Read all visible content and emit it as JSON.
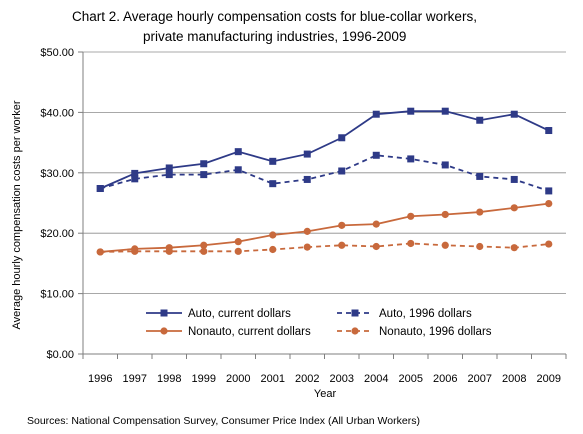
{
  "chart_data": {
    "type": "line",
    "title_lines": [
      "Chart 2.  Average hourly compensation costs for blue-collar workers,",
      "private manufacturing industries, 1996-2009"
    ],
    "xlabel": "Year",
    "ylabel": "Average hourly compensation costs per worker",
    "categories": [
      "1996",
      "1997",
      "1998",
      "1999",
      "2000",
      "2001",
      "2002",
      "2003",
      "2004",
      "2005",
      "2006",
      "2007",
      "2008",
      "2009"
    ],
    "ylim": [
      0,
      50
    ],
    "yticks": [
      0,
      10,
      20,
      30,
      40,
      50
    ],
    "ytick_labels": [
      "$0.00",
      "$10.00",
      "$20.00",
      "$30.00",
      "$40.00",
      "$50.00"
    ],
    "grid": "horizontal",
    "legend_position": "bottom-inside",
    "series": [
      {
        "name": "Auto, current dollars",
        "color": "#2e3a87",
        "style": "solid",
        "marker": "square",
        "values": [
          27.4,
          29.9,
          30.8,
          31.5,
          33.5,
          31.9,
          33.1,
          35.8,
          39.7,
          40.2,
          40.2,
          38.7,
          39.7,
          37.0
        ]
      },
      {
        "name": "Auto, 1996 dollars",
        "color": "#2e3a87",
        "style": "dashed",
        "marker": "square",
        "values": [
          27.4,
          29.0,
          29.7,
          29.7,
          30.5,
          28.2,
          28.9,
          30.3,
          32.9,
          32.3,
          31.3,
          29.4,
          28.9,
          27.0
        ]
      },
      {
        "name": "Nonauto, current dollars",
        "color": "#c8693c",
        "style": "solid",
        "marker": "circle",
        "values": [
          16.9,
          17.4,
          17.6,
          18.0,
          18.6,
          19.7,
          20.3,
          21.3,
          21.5,
          22.8,
          23.1,
          23.5,
          24.2,
          24.9
        ]
      },
      {
        "name": "Nonauto, 1996 dollars",
        "color": "#c8693c",
        "style": "dashed",
        "marker": "circle",
        "values": [
          16.9,
          17.0,
          17.0,
          17.0,
          17.0,
          17.3,
          17.7,
          18.0,
          17.8,
          18.3,
          18.0,
          17.8,
          17.6,
          18.2
        ]
      }
    ],
    "source": "Sources: National Compensation Survey, Consumer Price Index (All Urban Workers)"
  }
}
